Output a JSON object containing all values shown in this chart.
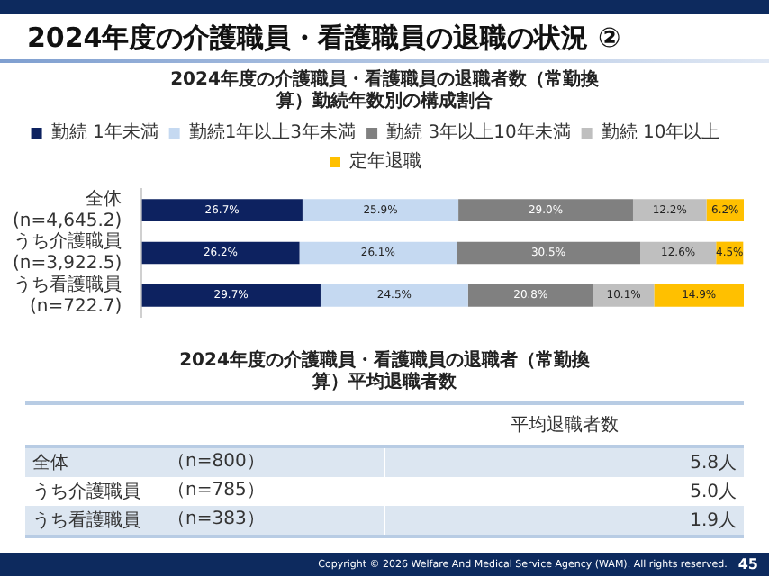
{
  "chart_data": [
    {
      "type": "bar",
      "orientation": "horizontal",
      "stacked": true,
      "title": "2024年度の介護職員・看護職員の退職の状況 ②",
      "subtitle": "2024年度の介護職員・看護職員の退職者数（常勤換算）勤続年数別の構成割合",
      "categories": [
        "全体\n(n=4,645.2)",
        "うち介護職員\n(n=3,922.5)",
        "うち看護職員\n(n=722.7)"
      ],
      "legend": "top",
      "series": [
        {
          "name": "勤続 1年未満",
          "color": "#0d2260",
          "values": [
            26.7,
            26.2,
            29.7
          ],
          "value_labels": [
            "26.7%",
            "26.2%",
            "29.7%"
          ]
        },
        {
          "name": "勤続1年以上3年未満",
          "color": "#c5d9f1",
          "values": [
            25.9,
            26.1,
            24.5
          ],
          "value_labels": [
            "25.9%",
            "26.1%",
            "24.5%"
          ]
        },
        {
          "name": "勤続 3年以上10年未満",
          "color": "#808080",
          "values": [
            29.0,
            30.5,
            20.8
          ],
          "value_labels": [
            "29.0%",
            "30.5%",
            "20.8%"
          ]
        },
        {
          "name": "勤続 10年以上",
          "color": "#bfbfbf",
          "values": [
            12.2,
            12.6,
            10.1
          ],
          "value_labels": [
            "12.2%",
            "12.6%",
            "10.1%"
          ]
        },
        {
          "name": "定年退職",
          "color": "#ffc000",
          "values": [
            6.2,
            4.5,
            14.9
          ],
          "value_labels": [
            "6.2%",
            "4.5%",
            "14.9%"
          ]
        }
      ]
    },
    {
      "type": "other",
      "title": "2024年度の介護職員・看護職員の退職者（常勤換算）平均退職者数",
      "categories": [
        "全体",
        "うち介護職員",
        "うち看護職員"
      ],
      "value_labels": [
        "5.8人",
        "5.0人",
        "1.9人"
      ],
      "annotations": [
        "平均退職者数",
        "（n=800）",
        "（n=785）",
        "（n=383）",
        "Copyright © 2026 Welfare And Medical Service Agency (WAM). All rights reserved.",
        "45"
      ]
    }
  ]
}
